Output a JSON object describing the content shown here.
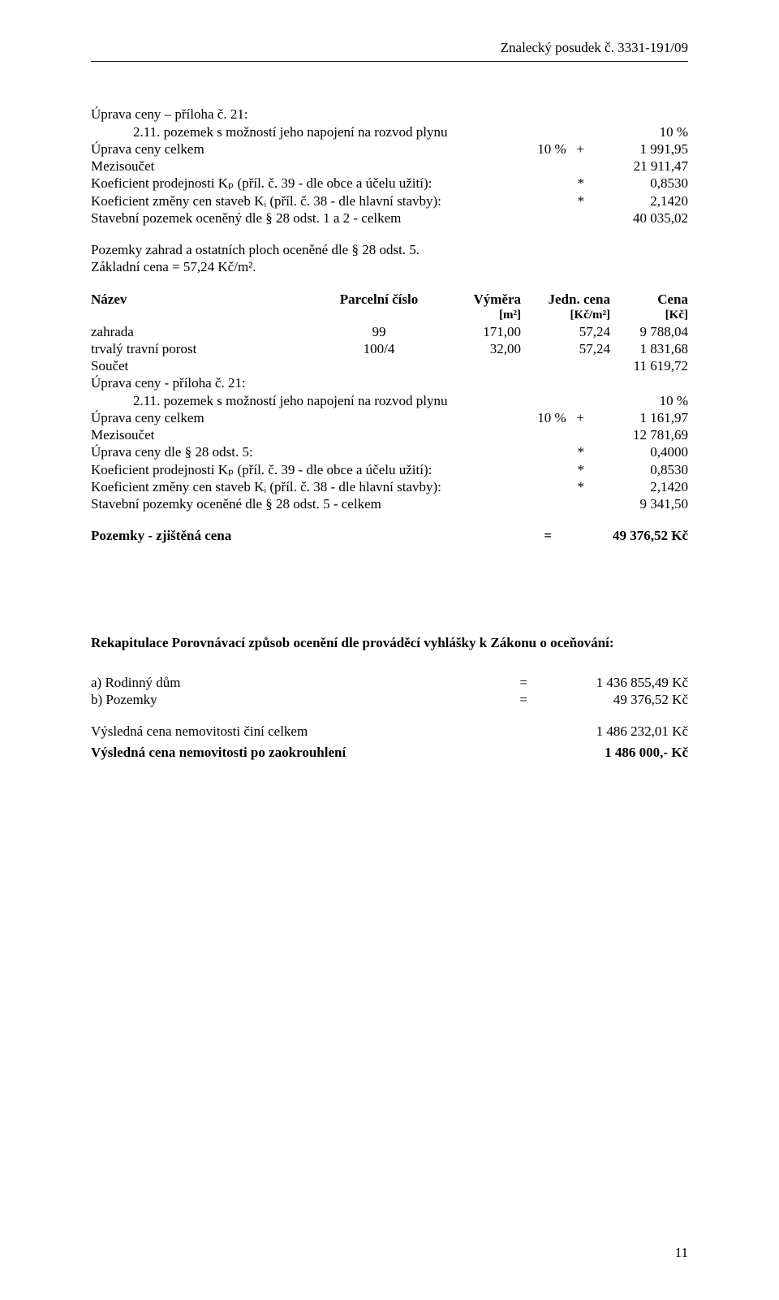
{
  "header": "Znalecký posudek č. 3331-191/09",
  "sectionA": {
    "title": "Úprava ceny – příloha č. 21:",
    "line1_indent": "2.11. pozemek s možností jeho napojení na rozvod plynu",
    "line1_right": "10 %",
    "rows": [
      {
        "l": "Úprava ceny celkem",
        "m": "10 %   +",
        "r": "1 991,95"
      },
      {
        "l": "Mezisoučet",
        "m": "",
        "r": "21 911,47"
      },
      {
        "l": "Koeficient prodejnosti Kₚ (příl. č. 39 - dle obce a účelu užití):",
        "m": "*",
        "r": "0,8530"
      },
      {
        "l": "Koeficient změny cen staveb Kᵢ (příl. č. 38 - dle hlavní stavby):",
        "m": "*",
        "r": "2,1420"
      },
      {
        "l": "Stavební pozemek oceněný dle § 28 odst. 1 a 2 - celkem",
        "m": "",
        "r": "40 035,02"
      }
    ]
  },
  "pozemky_note1": "Pozemky zahrad a ostatních ploch oceněné dle § 28 odst. 5.",
  "pozemky_note2": "Základní cena = 57,24 Kč/m².",
  "table": {
    "headers": {
      "nazev": "Název",
      "parc": "Parcelní číslo",
      "vymera": "Výměra",
      "vymera_unit": "[m²]",
      "jedn": "Jedn. cena",
      "jedn_unit": "[Kč/m²]",
      "cena": "Cena",
      "cena_unit": "[Kč]"
    },
    "rows": [
      {
        "nazev": "zahrada",
        "parc": "99",
        "vym": "171,00",
        "jc": "57,24",
        "cena": "9 788,04"
      },
      {
        "nazev": "trvalý travní porost",
        "parc": "100/4",
        "vym": "32,00",
        "jc": "57,24",
        "cena": "1 831,68"
      }
    ]
  },
  "soucet_label": "Součet",
  "soucet_value": "11 619,72",
  "sectionB": {
    "title": "Úprava ceny - příloha č. 21:",
    "line1_indent": "2.11. pozemek s možností jeho napojení na rozvod plynu",
    "line1_right": "10 %",
    "rows": [
      {
        "l": "Úprava ceny celkem",
        "m": "10 %   +",
        "r": "1 161,97"
      },
      {
        "l": "Mezisoučet",
        "m": "",
        "r": "12 781,69"
      },
      {
        "l": "Úprava ceny dle § 28 odst. 5:",
        "m": "*",
        "r": "0,4000"
      },
      {
        "l": "Koeficient prodejnosti Kₚ (příl. č. 39 - dle obce a účelu užití):",
        "m": "*",
        "r": "0,8530"
      },
      {
        "l": "Koeficient změny cen staveb Kᵢ (příl. č. 38 - dle hlavní stavby):",
        "m": "*",
        "r": "2,1420"
      },
      {
        "l": "Stavební pozemky oceněné dle § 28 odst. 5 - celkem",
        "m": "",
        "r": "9 341,50"
      }
    ]
  },
  "pozemky_zjistena": {
    "label": "Pozemky - zjištěná cena",
    "eq": "=",
    "value": "49 376,52 Kč"
  },
  "rekap_title": "Rekapitulace Porovnávací způsob ocenění dle prováděcí vyhlášky k Zákonu o oceňování:",
  "rekap_rows": [
    {
      "l": "a) Rodinný dům",
      "eq": "=",
      "r": "1 436 855,49 Kč"
    },
    {
      "l": "b) Pozemky",
      "eq": "=",
      "r": "49 376,52 Kč"
    }
  ],
  "vysledna1": {
    "l": "Výsledná cena nemovitosti činí celkem",
    "r": "1 486 232,01 Kč"
  },
  "vysledna2": {
    "l": "Výsledná cena nemovitosti po zaokrouhlení",
    "r": "1 486 000,- Kč"
  },
  "page_number": "11"
}
